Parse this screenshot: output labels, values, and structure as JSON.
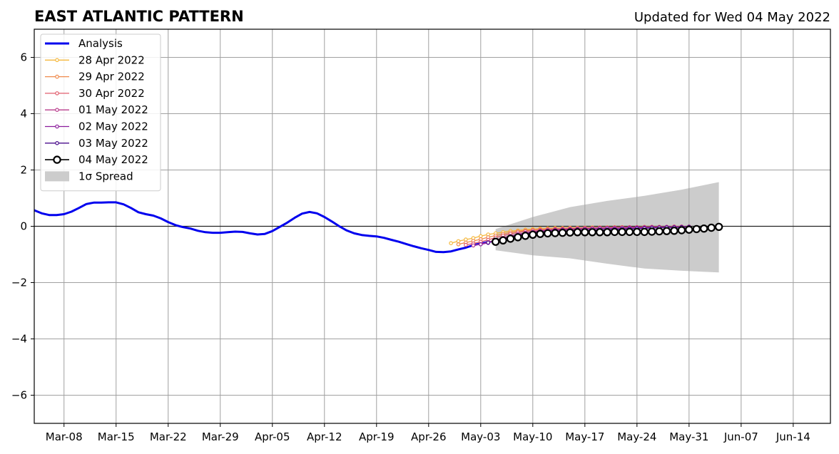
{
  "chart_data": {
    "type": "line",
    "title": "EAST ATLANTIC PATTERN",
    "subtitle": "Updated for Wed 04 May 2022",
    "xlabel": "",
    "ylabel": "",
    "x_axis": {
      "type": "date",
      "range": [
        "2022-03-04",
        "2022-06-19"
      ],
      "ticks": [
        "2022-03-08",
        "2022-03-15",
        "2022-03-22",
        "2022-03-29",
        "2022-04-05",
        "2022-04-12",
        "2022-04-19",
        "2022-04-26",
        "2022-05-03",
        "2022-05-10",
        "2022-05-17",
        "2022-05-24",
        "2022-05-31",
        "2022-06-07",
        "2022-06-14"
      ],
      "tick_labels": [
        "Mar-08",
        "Mar-15",
        "Mar-22",
        "Mar-29",
        "Apr-05",
        "Apr-12",
        "Apr-19",
        "Apr-26",
        "May-03",
        "May-10",
        "May-17",
        "May-24",
        "May-31",
        "Jun-07",
        "Jun-14"
      ]
    },
    "y_axis": {
      "range": [
        -7,
        7
      ],
      "ticks": [
        -6,
        -4,
        -2,
        0,
        2,
        4,
        6
      ],
      "tick_labels": [
        "−6",
        "−4",
        "−2",
        "0",
        "2",
        "4",
        "6"
      ]
    },
    "grid": true,
    "zero_line": true,
    "legend": {
      "placement": "top-left",
      "entries": [
        "Analysis",
        "28 Apr 2022",
        "29 Apr 2022",
        "30 Apr 2022",
        "01 May 2022",
        "02 May 2022",
        "03 May 2022",
        "04 May 2022",
        "1σ Spread"
      ]
    },
    "series": [
      {
        "name": "Analysis",
        "style": "line",
        "color": "#0000ee",
        "points": [
          [
            "2022-03-04",
            0.57
          ],
          [
            "2022-03-05",
            0.46
          ],
          [
            "2022-03-06",
            0.4
          ],
          [
            "2022-03-07",
            0.4
          ],
          [
            "2022-03-08",
            0.43
          ],
          [
            "2022-03-09",
            0.52
          ],
          [
            "2022-03-10",
            0.65
          ],
          [
            "2022-03-11",
            0.79
          ],
          [
            "2022-03-12",
            0.84
          ],
          [
            "2022-03-13",
            0.84
          ],
          [
            "2022-03-14",
            0.85
          ],
          [
            "2022-03-15",
            0.85
          ],
          [
            "2022-03-16",
            0.78
          ],
          [
            "2022-03-17",
            0.65
          ],
          [
            "2022-03-18",
            0.5
          ],
          [
            "2022-03-19",
            0.43
          ],
          [
            "2022-03-20",
            0.38
          ],
          [
            "2022-03-21",
            0.28
          ],
          [
            "2022-03-22",
            0.15
          ],
          [
            "2022-03-23",
            0.04
          ],
          [
            "2022-03-24",
            -0.03
          ],
          [
            "2022-03-25",
            -0.08
          ],
          [
            "2022-03-26",
            -0.16
          ],
          [
            "2022-03-27",
            -0.21
          ],
          [
            "2022-03-28",
            -0.23
          ],
          [
            "2022-03-29",
            -0.23
          ],
          [
            "2022-03-30",
            -0.21
          ],
          [
            "2022-03-31",
            -0.19
          ],
          [
            "2022-04-01",
            -0.2
          ],
          [
            "2022-04-02",
            -0.25
          ],
          [
            "2022-04-03",
            -0.29
          ],
          [
            "2022-04-04",
            -0.27
          ],
          [
            "2022-04-05",
            -0.17
          ],
          [
            "2022-04-06",
            -0.02
          ],
          [
            "2022-04-07",
            0.13
          ],
          [
            "2022-04-08",
            0.3
          ],
          [
            "2022-04-09",
            0.45
          ],
          [
            "2022-04-10",
            0.51
          ],
          [
            "2022-04-11",
            0.46
          ],
          [
            "2022-04-12",
            0.33
          ],
          [
            "2022-04-13",
            0.17
          ],
          [
            "2022-04-14",
            0.0
          ],
          [
            "2022-04-15",
            -0.15
          ],
          [
            "2022-04-16",
            -0.25
          ],
          [
            "2022-04-17",
            -0.31
          ],
          [
            "2022-04-18",
            -0.34
          ],
          [
            "2022-04-19",
            -0.36
          ],
          [
            "2022-04-20",
            -0.41
          ],
          [
            "2022-04-21",
            -0.48
          ],
          [
            "2022-04-22",
            -0.55
          ],
          [
            "2022-04-23",
            -0.63
          ],
          [
            "2022-04-24",
            -0.71
          ],
          [
            "2022-04-25",
            -0.78
          ],
          [
            "2022-04-26",
            -0.84
          ],
          [
            "2022-04-27",
            -0.91
          ],
          [
            "2022-04-28",
            -0.92
          ],
          [
            "2022-04-29",
            -0.89
          ],
          [
            "2022-04-30",
            -0.82
          ],
          [
            "2022-05-01",
            -0.76
          ],
          [
            "2022-05-02",
            -0.67
          ],
          [
            "2022-05-03",
            -0.61
          ],
          [
            "2022-05-04",
            -0.56
          ]
        ]
      },
      {
        "name": "28 Apr 2022",
        "style": "forecast-small",
        "color": "#f5b83d",
        "start": "2022-04-29",
        "values": [
          -0.6,
          -0.53,
          -0.47,
          -0.42,
          -0.35,
          -0.29,
          -0.25,
          -0.21,
          -0.17,
          -0.15,
          -0.12,
          -0.1,
          -0.08,
          -0.07,
          -0.06,
          -0.06,
          -0.05,
          -0.05,
          -0.05,
          -0.04,
          -0.04,
          -0.04,
          -0.03,
          -0.03,
          -0.03,
          -0.03,
          -0.02,
          -0.02,
          -0.02,
          -0.02,
          -0.01
        ]
      },
      {
        "name": "29 Apr 2022",
        "style": "forecast-small",
        "color": "#ef8a4c",
        "start": "2022-04-30",
        "values": [
          -0.64,
          -0.58,
          -0.52,
          -0.46,
          -0.39,
          -0.33,
          -0.27,
          -0.22,
          -0.18,
          -0.15,
          -0.13,
          -0.11,
          -0.09,
          -0.08,
          -0.07,
          -0.06,
          -0.06,
          -0.05,
          -0.05,
          -0.04,
          -0.04,
          -0.04,
          -0.03,
          -0.03,
          -0.03,
          -0.02,
          -0.02,
          -0.02,
          -0.02,
          -0.01,
          -0.01
        ]
      },
      {
        "name": "30 Apr 2022",
        "style": "forecast-small",
        "color": "#e05c6c",
        "start": "2022-05-01",
        "values": [
          -0.66,
          -0.61,
          -0.55,
          -0.48,
          -0.4,
          -0.33,
          -0.27,
          -0.22,
          -0.18,
          -0.15,
          -0.13,
          -0.11,
          -0.1,
          -0.09,
          -0.08,
          -0.07,
          -0.06,
          -0.06,
          -0.05,
          -0.05,
          -0.04,
          -0.04,
          -0.03,
          -0.03,
          -0.03,
          -0.02,
          -0.02,
          -0.02,
          -0.01,
          -0.01,
          -0.01
        ]
      },
      {
        "name": "01 May 2022",
        "style": "forecast-small",
        "color": "#b83c8c",
        "start": "2022-05-02",
        "values": [
          -0.68,
          -0.63,
          -0.56,
          -0.49,
          -0.41,
          -0.34,
          -0.28,
          -0.23,
          -0.19,
          -0.16,
          -0.14,
          -0.12,
          -0.11,
          -0.1,
          -0.09,
          -0.08,
          -0.07,
          -0.06,
          -0.06,
          -0.05,
          -0.05,
          -0.04,
          -0.04,
          -0.03,
          -0.03,
          -0.03,
          -0.02,
          -0.02,
          -0.02,
          -0.01
        ]
      },
      {
        "name": "02 May 2022",
        "style": "forecast-small",
        "color": "#8c1c9c",
        "start": "2022-05-03",
        "values": [
          -0.64,
          -0.59,
          -0.51,
          -0.43,
          -0.36,
          -0.3,
          -0.25,
          -0.21,
          -0.18,
          -0.16,
          -0.14,
          -0.13,
          -0.12,
          -0.11,
          -0.1,
          -0.09,
          -0.08,
          -0.07,
          -0.07,
          -0.06,
          -0.06,
          -0.05,
          -0.05,
          -0.04,
          -0.04,
          -0.03,
          -0.03,
          -0.02,
          -0.02
        ]
      },
      {
        "name": "03 May 2022",
        "style": "forecast-small",
        "color": "#4a0c8c",
        "start": "2022-05-04",
        "values": [
          -0.58,
          -0.52,
          -0.45,
          -0.39,
          -0.33,
          -0.28,
          -0.25,
          -0.22,
          -0.2,
          -0.19,
          -0.18,
          -0.17,
          -0.16,
          -0.15,
          -0.14,
          -0.13,
          -0.12,
          -0.11,
          -0.1,
          -0.09,
          -0.08,
          -0.07,
          -0.06,
          -0.05,
          -0.04,
          -0.04,
          -0.03,
          -0.02
        ]
      },
      {
        "name": "04 May 2022",
        "style": "forecast-large",
        "color": "#000000",
        "start": "2022-05-05",
        "values": [
          -0.55,
          -0.5,
          -0.44,
          -0.39,
          -0.34,
          -0.3,
          -0.27,
          -0.25,
          -0.24,
          -0.23,
          -0.22,
          -0.21,
          -0.21,
          -0.21,
          -0.21,
          -0.21,
          -0.2,
          -0.2,
          -0.2,
          -0.2,
          -0.2,
          -0.19,
          -0.18,
          -0.17,
          -0.16,
          -0.14,
          -0.12,
          -0.1,
          -0.08,
          -0.05,
          -0.02
        ]
      }
    ],
    "spread": {
      "name": "1σ Spread",
      "color": "#cccccc",
      "x": [
        "2022-05-05",
        "2022-05-10",
        "2022-05-15",
        "2022-05-20",
        "2022-05-25",
        "2022-05-30",
        "2022-06-04"
      ],
      "upper": [
        -0.1,
        0.33,
        0.68,
        0.9,
        1.08,
        1.3,
        1.57
      ],
      "lower": [
        -0.85,
        -1.03,
        -1.14,
        -1.33,
        -1.5,
        -1.58,
        -1.64
      ]
    }
  }
}
